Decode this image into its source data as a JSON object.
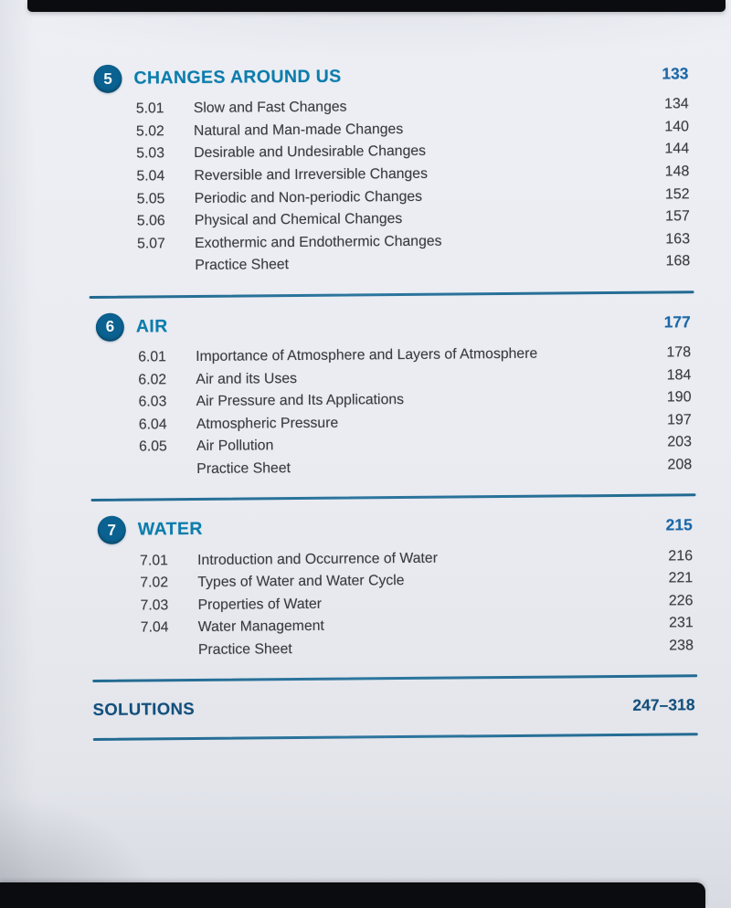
{
  "colors": {
    "page_bg": "#e9ebf1",
    "letterbox": "#0b0c0f",
    "badge_bg": "#0b6190",
    "chapter_title": "#0c7dac",
    "chapter_page": "#1c67a6",
    "body_text": "#3a3b41",
    "rule": "#226a91",
    "solutions": "#134f7c"
  },
  "toc": {
    "chapters": [
      {
        "number": "5",
        "title": "CHANGES AROUND US",
        "page": "133",
        "sections": [
          {
            "num": "5.01",
            "title": "Slow and Fast Changes",
            "page": "134"
          },
          {
            "num": "5.02",
            "title": "Natural and Man-made Changes",
            "page": "140"
          },
          {
            "num": "5.03",
            "title": "Desirable and Undesirable Changes",
            "page": "144"
          },
          {
            "num": "5.04",
            "title": "Reversible and Irreversible Changes",
            "page": "148"
          },
          {
            "num": "5.05",
            "title": "Periodic and Non-periodic Changes",
            "page": "152"
          },
          {
            "num": "5.06",
            "title": "Physical and Chemical Changes",
            "page": "157"
          },
          {
            "num": "5.07",
            "title": "Exothermic and Endothermic Changes",
            "page": "163"
          },
          {
            "num": "",
            "title": "Practice Sheet",
            "page": "168"
          }
        ]
      },
      {
        "number": "6",
        "title": "AIR",
        "page": "177",
        "sections": [
          {
            "num": "6.01",
            "title": "Importance of Atmosphere and Layers of Atmosphere",
            "page": "178"
          },
          {
            "num": "6.02",
            "title": "Air and its Uses",
            "page": "184"
          },
          {
            "num": "6.03",
            "title": "Air Pressure and Its Applications",
            "page": "190"
          },
          {
            "num": "6.04",
            "title": "Atmospheric Pressure",
            "page": "197"
          },
          {
            "num": "6.05",
            "title": "Air Pollution",
            "page": "203"
          },
          {
            "num": "",
            "title": "Practice Sheet",
            "page": "208"
          }
        ]
      },
      {
        "number": "7",
        "title": "WATER",
        "page": "215",
        "sections": [
          {
            "num": "7.01",
            "title": "Introduction and Occurrence of Water",
            "page": "216"
          },
          {
            "num": "7.02",
            "title": "Types of Water and Water Cycle",
            "page": "221"
          },
          {
            "num": "7.03",
            "title": "Properties of Water",
            "page": "226"
          },
          {
            "num": "7.04",
            "title": "Water Management",
            "page": "231"
          },
          {
            "num": "",
            "title": "Practice Sheet",
            "page": "238"
          }
        ]
      }
    ],
    "footer": {
      "label": "SOLUTIONS",
      "pages": "247–318"
    }
  }
}
